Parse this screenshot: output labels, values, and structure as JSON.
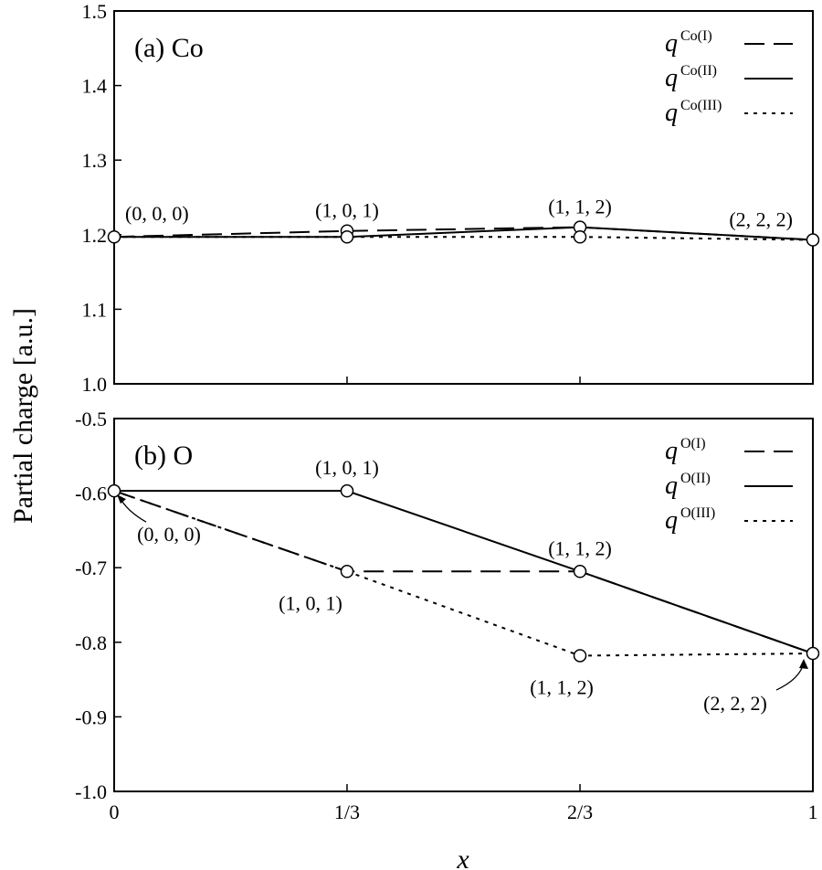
{
  "chart_data": [
    {
      "type": "line",
      "panel_label": "(a) Co",
      "x_ticks": [
        "0",
        "1/3",
        "2/3",
        "1"
      ],
      "x": [
        0,
        0.3333,
        0.6667,
        1
      ],
      "ylim": [
        1.0,
        1.5
      ],
      "y_ticks": [
        "1.0",
        "1.1",
        "1.2",
        "1.3",
        "1.4",
        "1.5"
      ],
      "legend_position": "top-right",
      "series": [
        {
          "legend_base": "q",
          "legend_sup": "Co(I)",
          "style": "dashed",
          "values": [
            1.197,
            1.205,
            1.21,
            1.193
          ]
        },
        {
          "legend_base": "q",
          "legend_sup": "Co(II)",
          "style": "solid",
          "values": [
            1.197,
            1.197,
            1.21,
            1.193
          ]
        },
        {
          "legend_base": "q",
          "legend_sup": "Co(III)",
          "style": "dotted",
          "values": [
            1.197,
            1.197,
            1.197,
            1.193
          ]
        }
      ],
      "annotations": [
        {
          "text": "(0, 0, 0)",
          "x": 0,
          "y": 1.197,
          "place": "above"
        },
        {
          "text": "(1, 0, 1)",
          "x": 0.3333,
          "y": 1.205,
          "place": "above"
        },
        {
          "text": "(1, 1, 2)",
          "x": 0.6667,
          "y": 1.21,
          "place": "above"
        },
        {
          "text": "(2, 2, 2)",
          "x": 1,
          "y": 1.193,
          "place": "above"
        }
      ]
    },
    {
      "type": "line",
      "panel_label": "(b) O",
      "x_ticks": [
        "0",
        "1/3",
        "2/3",
        "1"
      ],
      "x": [
        0,
        0.3333,
        0.6667,
        1
      ],
      "ylim": [
        -1.0,
        -0.5
      ],
      "y_ticks": [
        "-1.0",
        "-0.9",
        "-0.8",
        "-0.7",
        "-0.6",
        "-0.5"
      ],
      "legend_position": "top-right",
      "series": [
        {
          "legend_base": "q",
          "legend_sup": "O(I)",
          "style": "dashed",
          "values": [
            -0.597,
            -0.705,
            -0.705,
            -0.815
          ]
        },
        {
          "legend_base": "q",
          "legend_sup": "O(II)",
          "style": "solid",
          "values": [
            -0.597,
            -0.597,
            -0.705,
            -0.815
          ]
        },
        {
          "legend_base": "q",
          "legend_sup": "O(III)",
          "style": "dotted",
          "values": [
            -0.597,
            -0.705,
            -0.818,
            -0.815
          ]
        }
      ],
      "annotations": [
        {
          "text": "(0, 0, 0)",
          "x": 0,
          "y": -0.597,
          "place": "arrow-below"
        },
        {
          "text": "(1, 0, 1)",
          "x": 0.3333,
          "y": -0.597,
          "place": "above"
        },
        {
          "text": "(1, 0, 1)",
          "x": 0.3333,
          "y": -0.705,
          "place": "below"
        },
        {
          "text": "(1, 1, 2)",
          "x": 0.6667,
          "y": -0.705,
          "place": "above"
        },
        {
          "text": "(1, 1, 2)",
          "x": 0.6667,
          "y": -0.818,
          "place": "below"
        },
        {
          "text": "(2, 2, 2)",
          "x": 1,
          "y": -0.815,
          "place": "arrow-below"
        }
      ]
    }
  ],
  "ylabel": "Partial charge [a.u.]",
  "xlabel": "x"
}
